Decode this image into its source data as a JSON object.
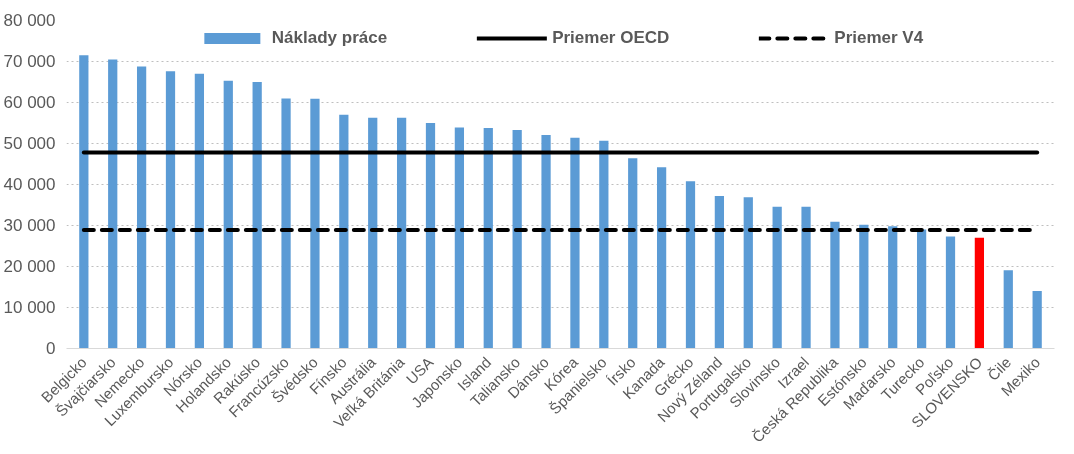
{
  "chart_data": {
    "type": "bar",
    "categories": [
      "Belgicko",
      "Švajčiarsko",
      "Nemecko",
      "Luxembursko",
      "Nórsko",
      "Holandsko",
      "Rakúsko",
      "Francúzsko",
      "Švédsko",
      "Fínsko",
      "Austrália",
      "Veľká Británia",
      "USA",
      "Japonsko",
      "Island",
      "Taliansko",
      "Dánsko",
      "Kórea",
      "Španielsko",
      "Írsko",
      "Kanada",
      "Grécko",
      "Nový Zéland",
      "Portugalsko",
      "Slovinsko",
      "Izrael",
      "Česká Republika",
      "Estónsko",
      "Maďarsko",
      "Turecko",
      "Poľsko",
      "SLOVENSKO",
      "Čile",
      "Mexiko"
    ],
    "series": [
      {
        "name": "Náklady práce",
        "color": "#5b9bd5",
        "colors": [
          "#5b9bd5",
          "#5b9bd5",
          "#5b9bd5",
          "#5b9bd5",
          "#5b9bd5",
          "#5b9bd5",
          "#5b9bd5",
          "#5b9bd5",
          "#5b9bd5",
          "#5b9bd5",
          "#5b9bd5",
          "#5b9bd5",
          "#5b9bd5",
          "#5b9bd5",
          "#5b9bd5",
          "#5b9bd5",
          "#5b9bd5",
          "#5b9bd5",
          "#5b9bd5",
          "#5b9bd5",
          "#5b9bd5",
          "#5b9bd5",
          "#5b9bd5",
          "#5b9bd5",
          "#5b9bd5",
          "#5b9bd5",
          "#5b9bd5",
          "#5b9bd5",
          "#5b9bd5",
          "#5b9bd5",
          "#5b9bd5",
          "#ff0000",
          "#5b9bd5",
          "#5b9bd5"
        ],
        "values": [
          71500,
          70500,
          68800,
          67600,
          67000,
          65300,
          65000,
          61000,
          60900,
          57000,
          56300,
          56300,
          55000,
          53900,
          53800,
          53300,
          52100,
          51400,
          50700,
          46400,
          44200,
          40800,
          37200,
          36900,
          34600,
          34600,
          30900,
          30200,
          29800,
          29000,
          27300,
          27000,
          19100,
          14000
        ]
      }
    ],
    "ref_lines": [
      {
        "axis": "y",
        "value": 47800,
        "label": "Priemer OECD",
        "color": "#000000",
        "line_style": "solid"
      },
      {
        "axis": "y",
        "value": 28900,
        "label": "Priemer V4",
        "color": "#000000",
        "line_style": "dashed"
      }
    ],
    "ylim": [
      0,
      80000
    ],
    "yticks": [
      {
        "value": 0,
        "label": "0"
      },
      {
        "value": 10000,
        "label": "10 000"
      },
      {
        "value": 20000,
        "label": "20 000"
      },
      {
        "value": 30000,
        "label": "30 000"
      },
      {
        "value": 40000,
        "label": "40 000"
      },
      {
        "value": 50000,
        "label": "50 000"
      },
      {
        "value": 60000,
        "label": "60 000"
      },
      {
        "value": 70000,
        "label": "70 000"
      },
      {
        "value": 80000,
        "label": "80 000"
      }
    ],
    "grid": "y",
    "legend": "top"
  }
}
